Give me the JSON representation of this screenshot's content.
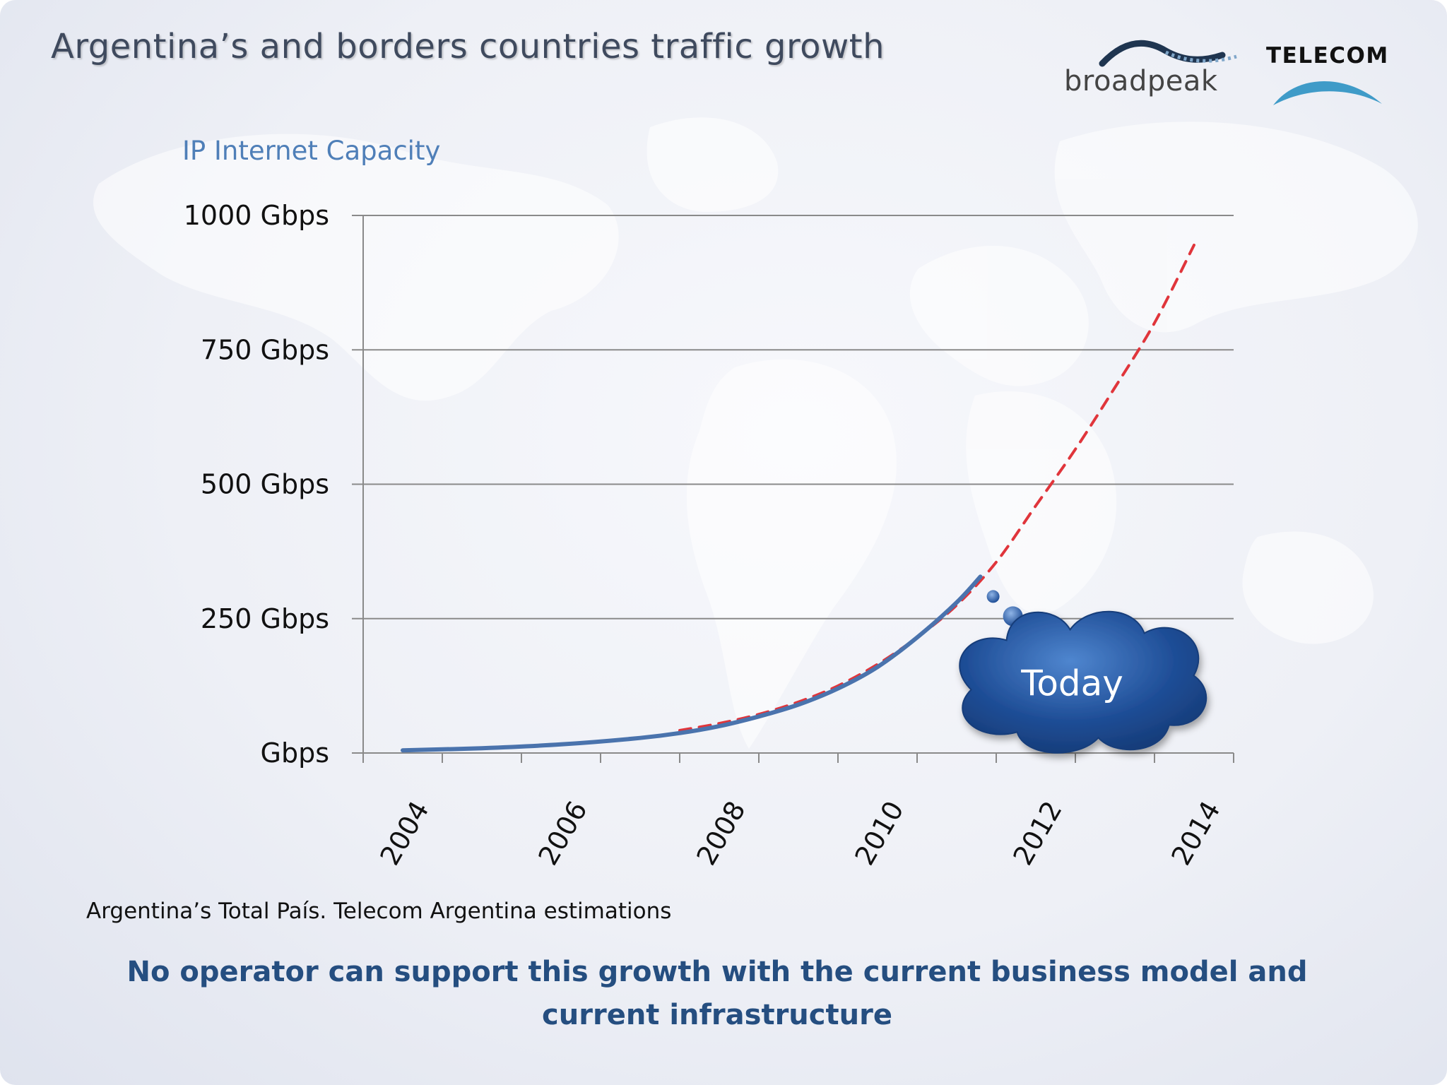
{
  "slide": {
    "title": "Argentina’s and borders countries traffic  growth",
    "source_note": "Argentina’s Total País. Telecom Argentina estimations",
    "conclusion": "No operator can support this growth with the current business model and current infrastructure"
  },
  "logos": {
    "broadpeak": "broadpeak",
    "telecom": "TELECOM"
  },
  "colors": {
    "actual_line": "#4a73ad",
    "forecast_line": "#e0353b",
    "gridline": "#8a8a8a",
    "cloud": "#1f4e97",
    "title_blue": "#4f7fb8",
    "conclusion_blue": "#254e80"
  },
  "chart_data": {
    "type": "line",
    "title": "IP Internet Capacity",
    "xlabel": "",
    "ylabel": "",
    "x_tick_labels": [
      "2004",
      "2006",
      "2008",
      "2010",
      "2012",
      "2014"
    ],
    "y_tick_labels": [
      "1000 Gbps",
      "750 Gbps",
      "500 Gbps",
      "250 Gbps",
      "Gbps"
    ],
    "xlim": [
      2003.5,
      2014.5
    ],
    "ylim": [
      0,
      1000
    ],
    "grid": true,
    "series": [
      {
        "style": "solid",
        "color": "#4a73ad",
        "points": [
          [
            2004,
            5
          ],
          [
            2005,
            9
          ],
          [
            2006,
            16
          ],
          [
            2007,
            28
          ],
          [
            2007.5,
            37
          ],
          [
            2008,
            50
          ],
          [
            2008.5,
            68
          ],
          [
            2009,
            90
          ],
          [
            2009.5,
            120
          ],
          [
            2010,
            160
          ],
          [
            2010.5,
            215
          ],
          [
            2011,
            280
          ],
          [
            2011.3,
            328
          ]
        ]
      },
      {
        "style": "dashed",
        "color": "#e0353b",
        "points": [
          [
            2007.5,
            42
          ],
          [
            2008,
            55
          ],
          [
            2008.5,
            72
          ],
          [
            2009,
            95
          ],
          [
            2009.5,
            125
          ],
          [
            2010,
            165
          ],
          [
            2010.5,
            215
          ],
          [
            2011,
            275
          ],
          [
            2011.5,
            355
          ],
          [
            2012,
            460
          ],
          [
            2012.5,
            565
          ],
          [
            2013,
            680
          ],
          [
            2013.5,
            800
          ],
          [
            2014,
            945
          ]
        ]
      }
    ],
    "annotations": [
      {
        "text": "Today",
        "shape": "thought-cloud",
        "x": 2011.3,
        "y": 328
      }
    ]
  }
}
